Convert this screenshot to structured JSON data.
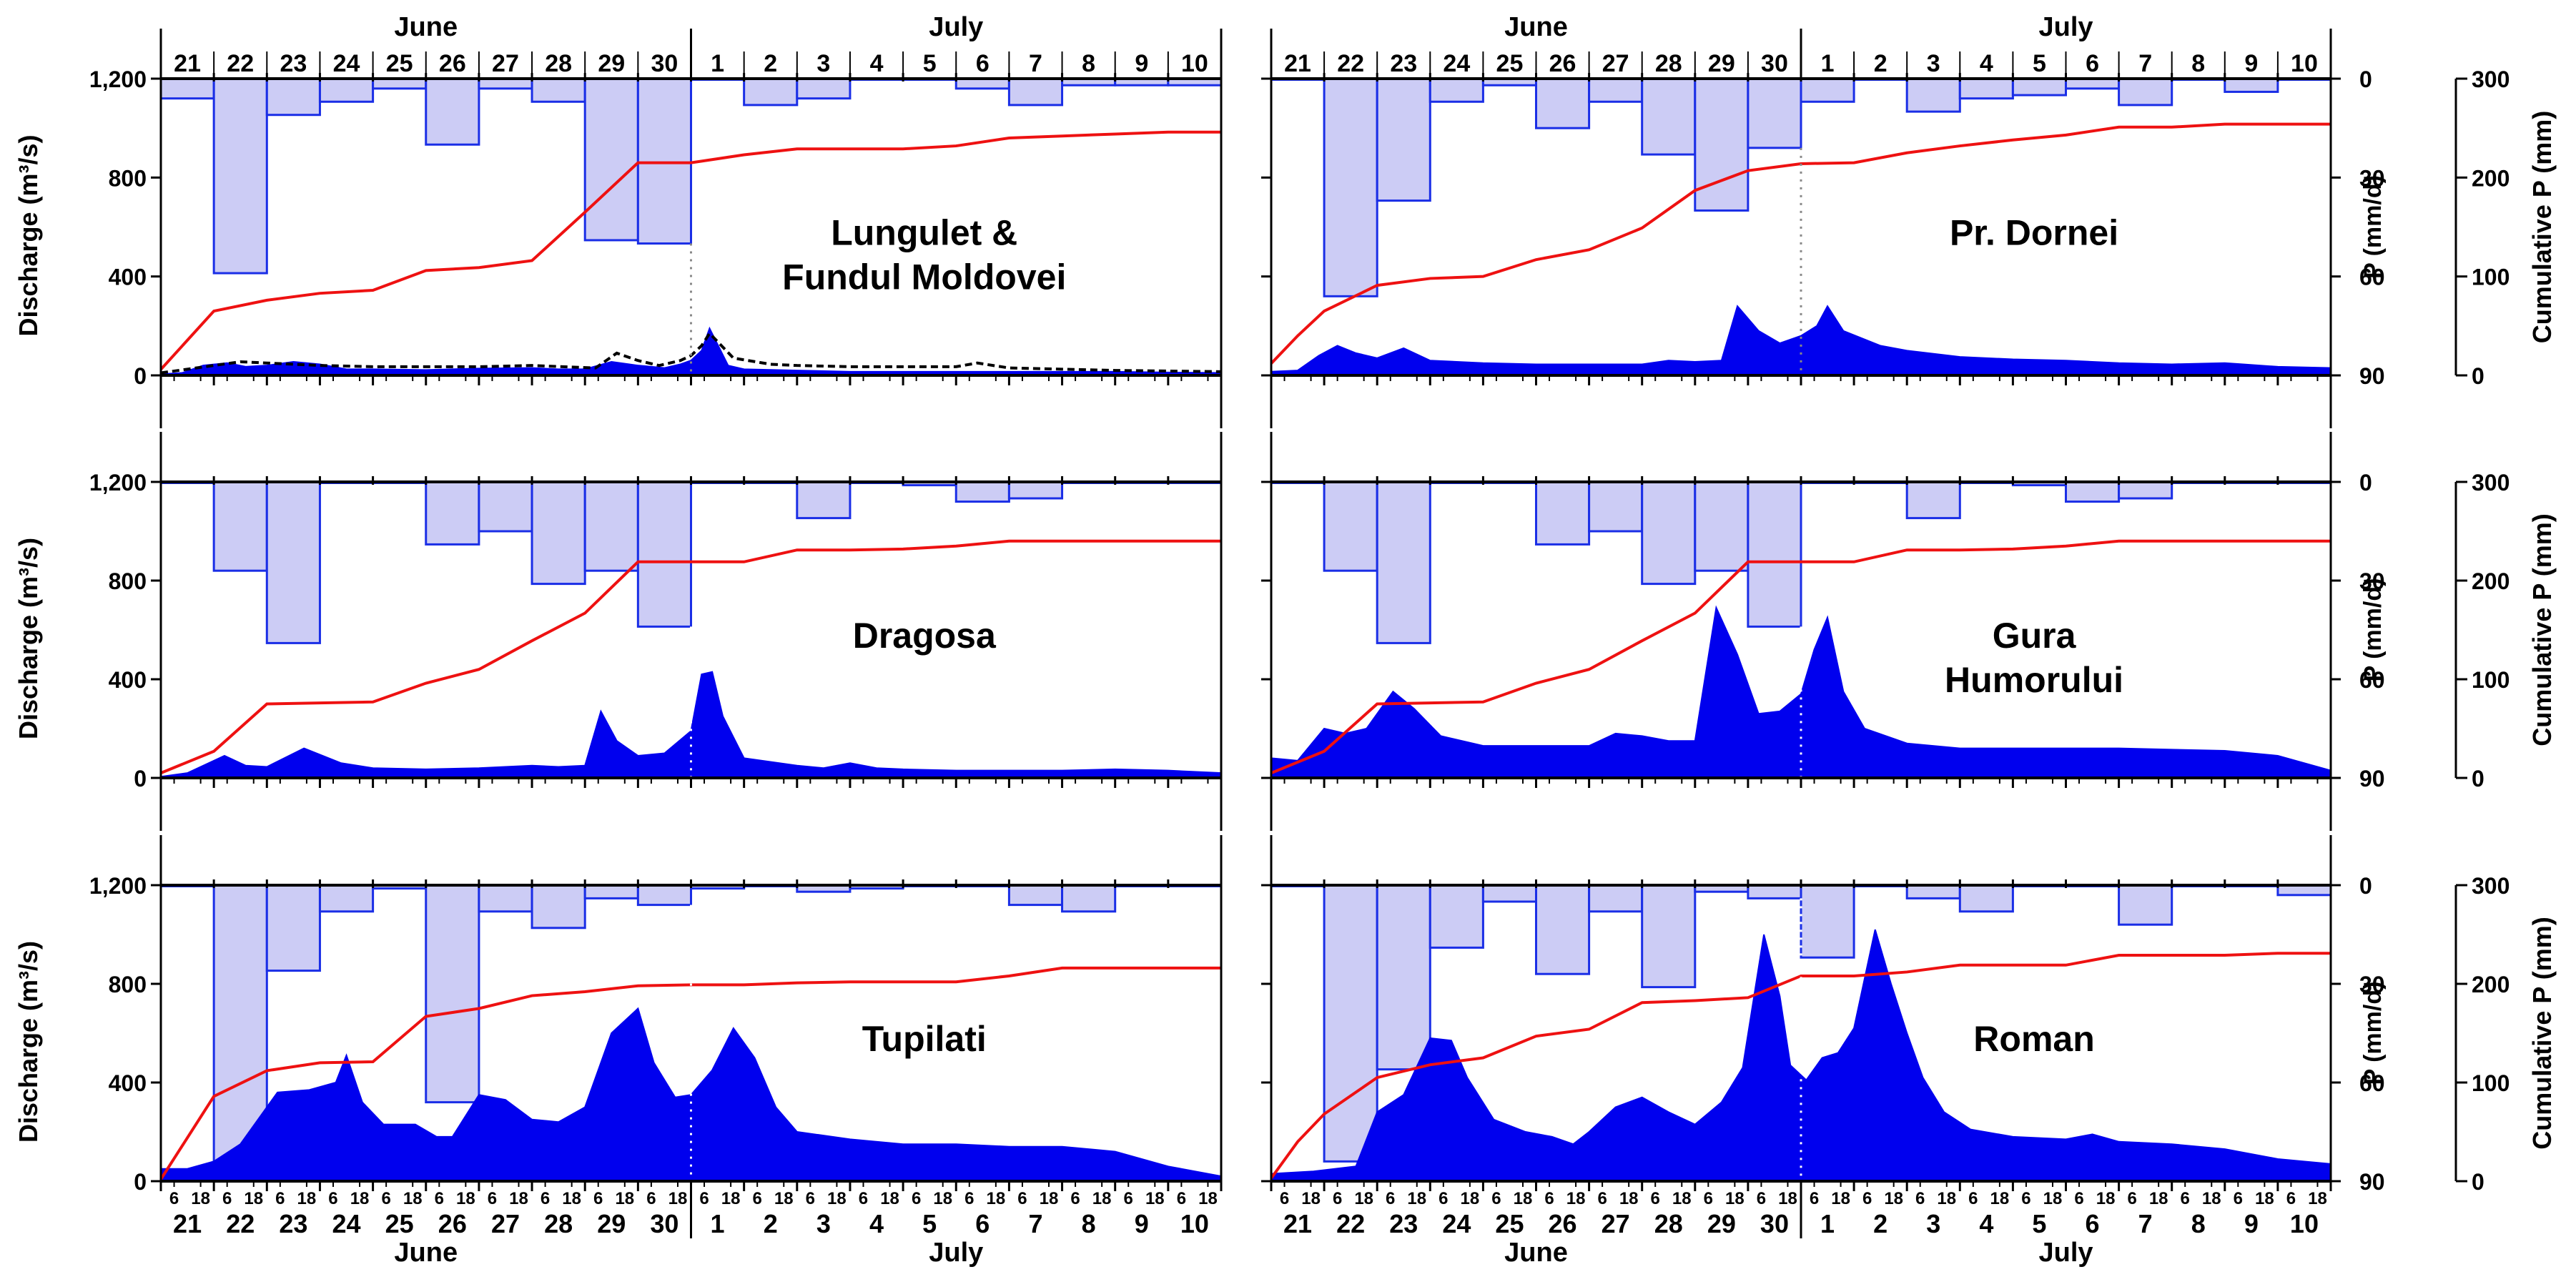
{
  "figure": {
    "top_months": {
      "left": "June",
      "right": "July"
    },
    "bottom_months": {
      "left": "June",
      "right": "July"
    },
    "left_axis_label": "Discharge (m³/s)",
    "right_precip_label": "P (mm/d)",
    "right_cumulative_label": "Cumulative P (mm)",
    "day_labels": [
      "21",
      "22",
      "23",
      "24",
      "25",
      "26",
      "27",
      "28",
      "29",
      "30",
      "1",
      "2",
      "3",
      "4",
      "5",
      "6",
      "7",
      "8",
      "9",
      "10"
    ],
    "hour_labels": [
      "6",
      "18"
    ],
    "discharge_ticks": [
      0,
      400,
      800,
      1200
    ],
    "discharge_tick_labels": [
      "0",
      "400",
      "800",
      "1,200"
    ],
    "precip_ticks": [
      0,
      30,
      60,
      90
    ],
    "precip_tick_labels": [
      "0",
      "30",
      "60",
      "90"
    ],
    "cum_ticks": [
      0,
      100,
      200,
      300
    ],
    "cum_tick_labels": [
      "0",
      "100",
      "200",
      "300"
    ]
  },
  "colors": {
    "discharge_fill": "#0000ee",
    "precip_fill": "#ccccf5",
    "precip_edge": "#1a2ee6",
    "cumulative_line": "#ee1111",
    "axis": "#000000"
  },
  "chart_data": [
    {
      "type": "area",
      "station": "Lungulet & Fundul Moldovei",
      "title_lines": [
        "Lungulet &",
        "Fundul Moldovei"
      ],
      "x_unit": "days since 21 June 00:00",
      "xlim": [
        0,
        20
      ],
      "ylim": [
        0,
        1200
      ],
      "precip_ylim": [
        0,
        90
      ],
      "cum_ylim": [
        0,
        300
      ],
      "precip_mm_d": [
        6,
        59,
        11,
        7,
        3,
        20,
        3,
        7,
        49,
        50,
        0,
        8,
        6,
        0,
        0,
        3,
        8,
        2,
        2,
        2
      ],
      "cumulative_x": [
        0,
        1,
        2,
        3,
        4,
        5,
        6,
        7,
        8,
        9,
        10,
        11,
        12,
        13,
        14,
        15,
        16,
        17,
        18,
        19,
        20
      ],
      "cumulative_mm": [
        6,
        65,
        76,
        83,
        86,
        106,
        109,
        116,
        165,
        215,
        215,
        223,
        229,
        229,
        229,
        232,
        240,
        242,
        244,
        246,
        246
      ],
      "discharge_x": [
        0,
        0.4,
        0.8,
        1.25,
        1.6,
        2.0,
        2.5,
        3.0,
        3.5,
        4.0,
        5.0,
        6.0,
        7.0,
        7.5,
        8.0,
        8.5,
        9.0,
        9.5,
        9.8,
        10.0,
        10.2,
        10.35,
        10.7,
        11.0,
        12.0,
        13.0,
        14.0,
        15.0,
        16.0,
        17.0,
        18.0,
        19.0,
        20.0
      ],
      "discharge_m3s": [
        5,
        10,
        40,
        50,
        35,
        40,
        55,
        45,
        25,
        25,
        22,
        28,
        30,
        25,
        25,
        55,
        40,
        30,
        45,
        60,
        100,
        190,
        40,
        25,
        20,
        15,
        15,
        15,
        15,
        15,
        15,
        12,
        10
      ],
      "dashed_x": [
        0,
        1,
        1.5,
        2,
        3,
        4,
        6,
        7,
        8.2,
        8.6,
        9.0,
        9.4,
        9.8,
        10.0,
        10.2,
        10.35,
        10.8,
        11.5,
        12,
        13,
        14,
        15,
        15.4,
        16,
        17,
        18,
        20
      ],
      "dashed_m3s": [
        10,
        40,
        55,
        50,
        40,
        35,
        35,
        40,
        30,
        90,
        60,
        40,
        60,
        80,
        120,
        170,
        70,
        45,
        40,
        35,
        35,
        35,
        50,
        30,
        25,
        20,
        15
      ],
      "divider_dotted": true
    },
    {
      "type": "area",
      "station": "Pr. Dornei",
      "title_lines": [
        "Pr. Dornei"
      ],
      "x_unit": "days since 21 June 00:00",
      "xlim": [
        0,
        20
      ],
      "ylim": [
        0,
        1200
      ],
      "precip_ylim": [
        0,
        90
      ],
      "cum_ylim": [
        0,
        300
      ],
      "precip_mm_d": [
        0,
        66,
        37,
        7,
        2,
        15,
        7,
        23,
        40,
        21,
        7,
        0,
        10,
        6,
        5,
        3,
        8,
        0,
        4,
        0
      ],
      "cumulative_x": [
        0,
        0.5,
        1,
        2,
        3,
        4,
        5,
        6,
        7,
        8,
        9,
        10,
        11,
        12,
        13,
        14,
        15,
        16,
        17,
        18,
        19,
        20
      ],
      "cumulative_mm": [
        12,
        40,
        65,
        91,
        98,
        100,
        117,
        127,
        149,
        187,
        207,
        214,
        215,
        225,
        232,
        238,
        243,
        251,
        251,
        254,
        254,
        254
      ],
      "discharge_x": [
        0,
        0.5,
        0.9,
        1.25,
        1.6,
        2.0,
        2.5,
        3.0,
        3.5,
        4.0,
        5.0,
        6.0,
        7.0,
        7.5,
        8.0,
        8.5,
        8.8,
        9.2,
        9.6,
        10.0,
        10.3,
        10.5,
        10.8,
        11.5,
        12.0,
        13.0,
        14.0,
        15.0,
        16.0,
        17.0,
        18.0,
        19.0,
        20.0
      ],
      "discharge_m3s": [
        15,
        20,
        80,
        120,
        90,
        70,
        110,
        60,
        55,
        50,
        45,
        45,
        45,
        60,
        55,
        60,
        280,
        180,
        130,
        160,
        200,
        280,
        180,
        120,
        100,
        75,
        65,
        60,
        50,
        45,
        50,
        35,
        30
      ],
      "dashed_x": [],
      "dashed_m3s": [],
      "divider_dotted": true
    },
    {
      "type": "area",
      "station": "Dragosa",
      "title_lines": [
        "Dragosa"
      ],
      "x_unit": "days since 21 June 00:00",
      "xlim": [
        0,
        20
      ],
      "ylim": [
        0,
        1200
      ],
      "precip_ylim": [
        0,
        90
      ],
      "cum_ylim": [
        0,
        300
      ],
      "precip_mm_d": [
        0,
        27,
        49,
        0,
        0,
        19,
        15,
        31,
        27,
        44,
        0,
        0,
        11,
        0,
        1,
        6,
        5,
        0,
        0,
        0
      ],
      "cumulative_x": [
        0,
        1,
        2,
        3,
        4,
        5,
        6,
        7,
        8,
        9,
        10,
        11,
        12,
        13,
        14,
        15,
        16,
        17,
        18,
        19,
        20
      ],
      "cumulative_mm": [
        5,
        27,
        75,
        76,
        77,
        96,
        110,
        139,
        167,
        219,
        219,
        219,
        231,
        231,
        232,
        235,
        240,
        240,
        240,
        240,
        240
      ],
      "discharge_x": [
        0,
        0.5,
        1.2,
        1.6,
        2.0,
        2.7,
        3.4,
        4.0,
        5.0,
        6.0,
        7.0,
        7.5,
        8.0,
        8.3,
        8.6,
        9.0,
        9.5,
        10.0,
        10.2,
        10.4,
        10.6,
        11.0,
        12.0,
        12.5,
        13.0,
        13.5,
        14.0,
        15.0,
        16.0,
        17.0,
        18.0,
        19.0,
        20.0
      ],
      "discharge_m3s": [
        5,
        20,
        90,
        50,
        45,
        120,
        60,
        40,
        35,
        40,
        50,
        45,
        50,
        270,
        150,
        90,
        100,
        190,
        420,
        430,
        250,
        80,
        50,
        40,
        60,
        40,
        35,
        30,
        30,
        30,
        35,
        30,
        20
      ],
      "dashed_x": [],
      "dashed_m3s": [],
      "divider_dotted": true
    },
    {
      "type": "area",
      "station": "Gura Humorului",
      "title_lines": [
        "Gura",
        "Humorului"
      ],
      "x_unit": "days since 21 June 00:00",
      "xlim": [
        0,
        20
      ],
      "ylim": [
        0,
        1200
      ],
      "precip_ylim": [
        0,
        90
      ],
      "cum_ylim": [
        0,
        300
      ],
      "precip_mm_d": [
        0,
        27,
        49,
        0,
        0,
        19,
        15,
        31,
        27,
        44,
        0,
        0,
        11,
        0,
        1,
        6,
        5,
        0,
        0,
        0
      ],
      "cumulative_x": [
        0,
        1,
        2,
        3,
        4,
        5,
        6,
        7,
        8,
        9,
        10,
        11,
        12,
        13,
        14,
        15,
        16,
        17,
        18,
        19,
        20
      ],
      "cumulative_mm": [
        5,
        27,
        75,
        76,
        77,
        96,
        110,
        139,
        167,
        219,
        219,
        219,
        231,
        231,
        232,
        235,
        240,
        240,
        240,
        240,
        240
      ],
      "discharge_x": [
        0,
        0.5,
        1.0,
        1.4,
        1.8,
        2.3,
        2.7,
        3.2,
        4.0,
        5.0,
        6.0,
        6.5,
        7.0,
        7.5,
        8.0,
        8.4,
        8.8,
        9.2,
        9.6,
        10.0,
        10.25,
        10.5,
        10.8,
        11.2,
        12.0,
        13.0,
        14.0,
        15.0,
        16.0,
        17.0,
        18.0,
        19.0,
        20.0
      ],
      "discharge_m3s": [
        80,
        70,
        200,
        180,
        200,
        350,
        280,
        170,
        130,
        130,
        130,
        180,
        170,
        150,
        150,
        690,
        500,
        260,
        270,
        340,
        520,
        650,
        350,
        200,
        140,
        120,
        120,
        120,
        120,
        115,
        110,
        90,
        30
      ],
      "dashed_x": [],
      "dashed_m3s": [],
      "divider_dotted": true
    },
    {
      "type": "area",
      "station": "Tupilati",
      "title_lines": [
        "Tupilati"
      ],
      "x_unit": "days since 21 June 00:00",
      "xlim": [
        0,
        20
      ],
      "ylim": [
        0,
        1200
      ],
      "precip_ylim": [
        0,
        90
      ],
      "cum_ylim": [
        0,
        300
      ],
      "precip_mm_d": [
        0,
        84,
        26,
        8,
        1,
        66,
        8,
        13,
        4,
        6,
        1,
        0,
        2,
        1,
        0,
        0,
        6,
        8,
        0,
        0
      ],
      "cumulative_x": [
        0,
        1,
        2,
        3,
        4,
        5,
        6,
        7,
        8,
        9,
        10,
        11,
        12,
        13,
        14,
        15,
        16,
        17,
        18,
        19,
        20
      ],
      "cumulative_mm": [
        2,
        86,
        112,
        120,
        121,
        167,
        175,
        188,
        192,
        198,
        199,
        199,
        201,
        202,
        202,
        202,
        208,
        216,
        216,
        216,
        216
      ],
      "discharge_x": [
        0,
        0.5,
        1.0,
        1.5,
        2.2,
        2.8,
        3.3,
        3.5,
        3.8,
        4.2,
        4.8,
        5.2,
        5.5,
        6.0,
        6.5,
        7.0,
        7.5,
        8.0,
        8.5,
        9.0,
        9.3,
        9.7,
        10.0,
        10.4,
        10.8,
        11.2,
        11.6,
        12.0,
        13.0,
        14.0,
        15.0,
        16.0,
        17.0,
        18.0,
        19.0,
        20.0
      ],
      "discharge_m3s": [
        50,
        50,
        80,
        150,
        360,
        370,
        400,
        510,
        320,
        230,
        230,
        180,
        180,
        350,
        330,
        250,
        240,
        300,
        600,
        700,
        480,
        340,
        350,
        450,
        620,
        500,
        300,
        200,
        170,
        150,
        150,
        140,
        140,
        120,
        60,
        20
      ],
      "dashed_x": [],
      "dashed_m3s": [],
      "divider_dotted": true
    },
    {
      "type": "area",
      "station": "Roman",
      "title_lines": [
        "Roman"
      ],
      "x_unit": "days since 21 June 00:00",
      "xlim": [
        0,
        20
      ],
      "ylim": [
        0,
        1200
      ],
      "precip_ylim": [
        0,
        90
      ],
      "cum_ylim": [
        0,
        300
      ],
      "precip_mm_d": [
        0,
        84,
        56,
        19,
        5,
        27,
        8,
        31,
        2,
        4,
        22,
        0,
        4,
        8,
        0,
        0,
        12,
        0,
        0,
        3
      ],
      "cumulative_x": [
        0,
        0.5,
        1,
        2,
        3,
        4,
        5,
        6,
        7,
        8,
        9,
        10,
        11,
        12,
        13,
        14,
        15,
        16,
        17,
        18,
        19,
        20
      ],
      "cumulative_mm": [
        3,
        40,
        68,
        105,
        118,
        125,
        147,
        154,
        181,
        183,
        186,
        208,
        208,
        212,
        219,
        219,
        219,
        229,
        229,
        229,
        231,
        231
      ],
      "discharge_x": [
        0,
        0.8,
        1.6,
        2.0,
        2.5,
        3.0,
        3.4,
        3.7,
        4.2,
        4.8,
        5.3,
        5.7,
        6.0,
        6.5,
        7.0,
        7.5,
        8.0,
        8.5,
        8.9,
        9.3,
        9.6,
        9.8,
        10.1,
        10.4,
        10.7,
        11.0,
        11.4,
        11.7,
        12.0,
        12.3,
        12.7,
        13.2,
        14.0,
        15.0,
        15.5,
        16.0,
        17.0,
        18.0,
        19.0,
        20.0
      ],
      "discharge_m3s": [
        30,
        40,
        60,
        280,
        350,
        580,
        570,
        420,
        250,
        200,
        180,
        150,
        200,
        300,
        340,
        280,
        230,
        320,
        460,
        1000,
        750,
        470,
        410,
        500,
        520,
        620,
        1020,
        800,
        600,
        420,
        280,
        210,
        180,
        170,
        190,
        160,
        150,
        130,
        90,
        70
      ]
    }
  ]
}
